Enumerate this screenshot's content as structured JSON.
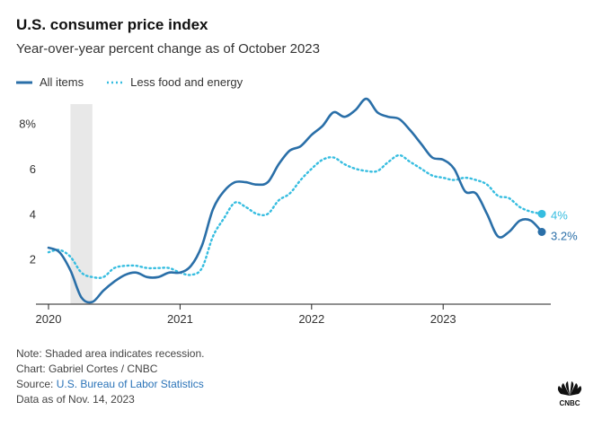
{
  "header": {
    "title": "U.S. consumer price index",
    "subtitle": "Year-over-year percent change as of October 2023"
  },
  "footer": {
    "note": "Note: Shaded area indicates recession.",
    "chart_credit": "Chart: Gabriel Cortes / CNBC",
    "source_prefix": "Source: ",
    "source_link": "U.S. Bureau of Labor Statistics",
    "data_as_of": "Data as of Nov. 14, 2023",
    "logo_text": "CNBC"
  },
  "colors": {
    "all_items": "#2a6fa8",
    "core": "#36bde0",
    "recession": "#e8e8e8",
    "axis": "#222222"
  },
  "chart_data": {
    "type": "line",
    "title": "U.S. consumer price index",
    "ylabel": "",
    "xlabel": "",
    "ylim": [
      0,
      9.5
    ],
    "xlim": [
      "2020-01",
      "2023-10"
    ],
    "y_ticks": [
      2,
      4,
      6,
      8
    ],
    "y_tick_labels": [
      "2",
      "4",
      "6",
      "8%"
    ],
    "x_tick_labels": [
      "2020",
      "2021",
      "2022",
      "2023"
    ],
    "legend_position": "top-left",
    "grid": false,
    "recession": {
      "start": "2020-03",
      "end": "2020-04"
    },
    "x": [
      "2020-01",
      "2020-02",
      "2020-03",
      "2020-04",
      "2020-05",
      "2020-06",
      "2020-07",
      "2020-08",
      "2020-09",
      "2020-10",
      "2020-11",
      "2020-12",
      "2021-01",
      "2021-02",
      "2021-03",
      "2021-04",
      "2021-05",
      "2021-06",
      "2021-07",
      "2021-08",
      "2021-09",
      "2021-10",
      "2021-11",
      "2021-12",
      "2022-01",
      "2022-02",
      "2022-03",
      "2022-04",
      "2022-05",
      "2022-06",
      "2022-07",
      "2022-08",
      "2022-09",
      "2022-10",
      "2022-11",
      "2022-12",
      "2023-01",
      "2023-02",
      "2023-03",
      "2023-04",
      "2023-05",
      "2023-06",
      "2023-07",
      "2023-08",
      "2023-09",
      "2023-10"
    ],
    "series": [
      {
        "name": "All items",
        "style": "solid",
        "values": [
          2.5,
          2.3,
          1.5,
          0.3,
          0.1,
          0.6,
          1.0,
          1.3,
          1.4,
          1.2,
          1.2,
          1.4,
          1.4,
          1.7,
          2.6,
          4.2,
          5.0,
          5.4,
          5.4,
          5.3,
          5.4,
          6.2,
          6.8,
          7.0,
          7.5,
          7.9,
          8.5,
          8.3,
          8.6,
          9.1,
          8.5,
          8.3,
          8.2,
          7.7,
          7.1,
          6.5,
          6.4,
          6.0,
          5.0,
          4.9,
          4.0,
          3.0,
          3.2,
          3.7,
          3.7,
          3.2
        ],
        "end_label": "3.2%"
      },
      {
        "name": "Less food and energy",
        "style": "dotted",
        "values": [
          2.3,
          2.4,
          2.1,
          1.4,
          1.2,
          1.2,
          1.6,
          1.7,
          1.7,
          1.6,
          1.6,
          1.6,
          1.4,
          1.3,
          1.6,
          3.0,
          3.8,
          4.5,
          4.3,
          4.0,
          4.0,
          4.6,
          4.9,
          5.5,
          6.0,
          6.4,
          6.5,
          6.2,
          6.0,
          5.9,
          5.9,
          6.3,
          6.6,
          6.3,
          6.0,
          5.7,
          5.6,
          5.5,
          5.6,
          5.5,
          5.3,
          4.8,
          4.7,
          4.3,
          4.1,
          4.0
        ],
        "end_label": "4%"
      }
    ]
  }
}
